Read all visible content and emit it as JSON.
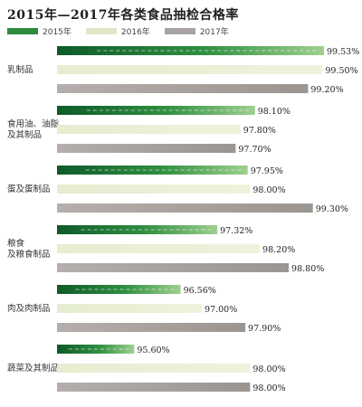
{
  "chart_data": {
    "type": "bar",
    "orientation": "horizontal",
    "title": "2015年—2017年各类食品抽检合格率",
    "categories": [
      [
        "乳制品"
      ],
      [
        "食用油、油脂",
        "及其制品"
      ],
      [
        "蛋及蛋制品"
      ],
      [
        "粮食",
        "及粮食制品"
      ],
      [
        "肉及肉制品"
      ],
      [
        "蔬菜及其制品"
      ]
    ],
    "series": [
      {
        "name": "2015年",
        "values": [
          99.53,
          98.1,
          97.95,
          97.32,
          96.56,
          95.6
        ],
        "labels": [
          "99.53%",
          "98.10%",
          "97.95%",
          "97.32%",
          "96.56%",
          "95.60%"
        ],
        "color": "#2e8b3e"
      },
      {
        "name": "2016年",
        "values": [
          99.5,
          97.8,
          98.0,
          98.2,
          97.0,
          98.0
        ],
        "labels": [
          "99.50%",
          "97.80%",
          "98.00%",
          "98.20%",
          "97.00%",
          "98.00%"
        ],
        "color": "#dfe8c6"
      },
      {
        "name": "2017年",
        "values": [
          99.2,
          97.7,
          99.3,
          98.8,
          97.9,
          98.0
        ],
        "labels": [
          "99.20%",
          "97.70%",
          "99.30%",
          "98.80%",
          "97.90%",
          "98.00%"
        ],
        "color": "#a8a3a0"
      }
    ],
    "legend_position": "top-left",
    "grid": false
  }
}
